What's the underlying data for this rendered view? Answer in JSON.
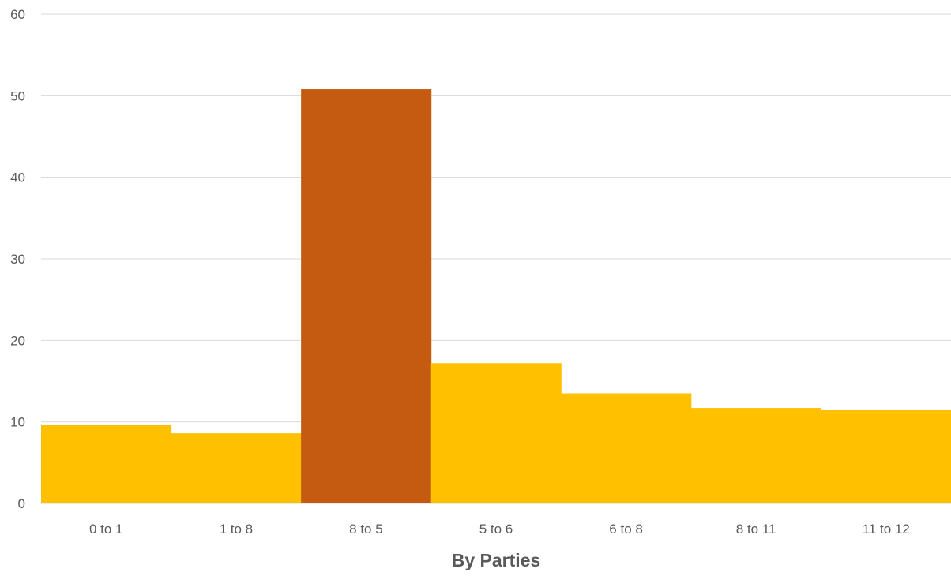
{
  "chart_data": {
    "type": "bar",
    "title": "",
    "xlabel": "By Parties",
    "ylabel": "",
    "categories": [
      "0 to 1",
      "1 to 8",
      "8 to 5",
      "5 to 6",
      "6 to 8",
      "8 to 11",
      "11 to 12"
    ],
    "values": [
      9.6,
      8.6,
      50.8,
      17.2,
      13.5,
      11.7,
      11.5
    ],
    "highlight_index": 2,
    "ylim": [
      0,
      60
    ],
    "yticks": [
      0,
      10,
      20,
      30,
      40,
      50,
      60
    ],
    "grid": true,
    "legend": "none",
    "colors": {
      "bar": "#FFC000",
      "highlight": "#C55A11",
      "grid": "#D9D9D9",
      "text": "#595959"
    }
  }
}
